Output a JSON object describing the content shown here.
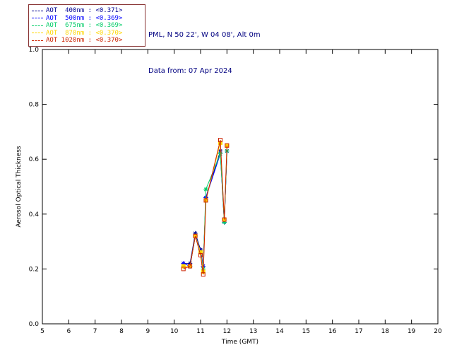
{
  "header": {
    "station_line": "PML, N 50 22', W 04 08', Alt 0m",
    "date_line": "Data from: 07 Apr 2024",
    "text_color": "#000080"
  },
  "legend": {
    "box_color": "#883333",
    "entries": [
      {
        "label": "AOT  400nm : <0.371>",
        "color": "#000090"
      },
      {
        "label": "AOT  500nm : <0.369>",
        "color": "#0000FF"
      },
      {
        "label": "AOT  675nm : <0.369>",
        "color": "#00CC66"
      },
      {
        "label": "AOT  870nm : <0.370>",
        "color": "#FFD700"
      },
      {
        "label": "AOT 1020nm : <0.370>",
        "color": "#CC2200"
      }
    ]
  },
  "chart_data": {
    "type": "line",
    "title": "",
    "xlabel": "Time (GMT)",
    "ylabel": "Aerosol Optical Thickness",
    "xlim": [
      5,
      20
    ],
    "ylim": [
      0.0,
      1.0
    ],
    "xticks": [
      5,
      6,
      7,
      8,
      9,
      10,
      11,
      12,
      13,
      14,
      15,
      16,
      17,
      18,
      19,
      20
    ],
    "yticks": [
      0.0,
      0.2,
      0.4,
      0.6,
      0.8,
      1.0
    ],
    "grid": false,
    "legend_position": "top-left-outside",
    "x": [
      10.35,
      10.6,
      10.8,
      11.0,
      11.1,
      11.2,
      11.75,
      11.9,
      12.0
    ],
    "series": [
      {
        "name": "AOT 400nm",
        "color": "#000090",
        "marker": "star",
        "values": [
          0.22,
          0.22,
          0.33,
          0.27,
          0.21,
          0.46,
          0.63,
          0.37,
          0.63
        ]
      },
      {
        "name": "AOT 500nm",
        "color": "#0000FF",
        "marker": "star",
        "values": [
          0.22,
          0.21,
          0.32,
          0.26,
          0.21,
          0.46,
          0.62,
          0.37,
          0.63
        ]
      },
      {
        "name": "AOT 675nm",
        "color": "#00CC66",
        "marker": "star",
        "values": [
          0.21,
          0.21,
          0.32,
          0.26,
          0.2,
          0.49,
          0.62,
          0.37,
          0.63
        ]
      },
      {
        "name": "AOT 870nm",
        "color": "#FFD700",
        "marker": "square-filled",
        "values": [
          0.21,
          0.21,
          0.32,
          0.26,
          0.19,
          0.45,
          0.66,
          0.38,
          0.65
        ]
      },
      {
        "name": "AOT 1020nm",
        "color": "#CC2200",
        "marker": "square-open",
        "values": [
          0.2,
          0.21,
          0.32,
          0.25,
          0.18,
          0.45,
          0.67,
          0.38,
          0.65
        ]
      }
    ]
  }
}
